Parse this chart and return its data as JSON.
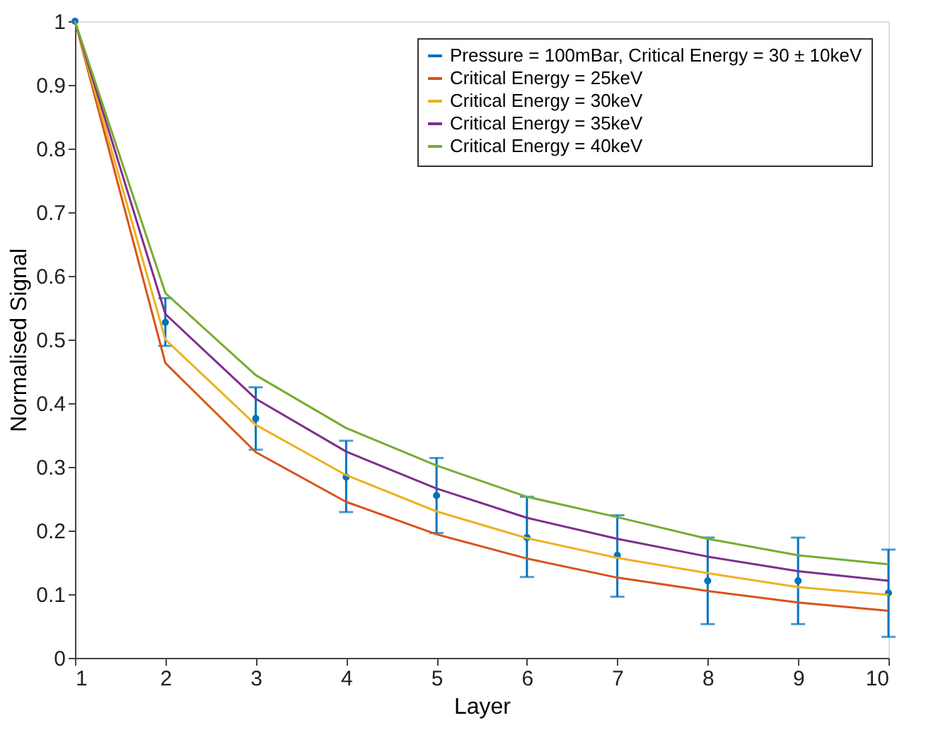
{
  "chart_data": {
    "type": "line",
    "xlabel": "Layer",
    "ylabel": "Normalised Signal",
    "x": [
      1,
      2,
      3,
      4,
      5,
      6,
      7,
      8,
      9,
      10
    ],
    "xlim": [
      1,
      10
    ],
    "xticks": [
      1,
      2,
      3,
      4,
      5,
      6,
      7,
      8,
      9,
      10
    ],
    "ylim": [
      0,
      1
    ],
    "yticks": [
      0,
      0.1,
      0.2,
      0.3,
      0.4,
      0.5,
      0.6,
      0.7,
      0.8,
      0.9,
      1
    ],
    "grid": false,
    "legend": "top right",
    "series": [
      {
        "name": "Pressure = 100mBar, Critical Energy = 30 ± 10keV",
        "type": "scatter",
        "marker": "circle",
        "color": "#0072bd",
        "values": [
          1,
          0.527,
          0.376,
          0.284,
          0.255,
          0.189,
          0.161,
          0.121,
          0.121,
          0.102
        ],
        "errors": [
          null,
          [
            0.49,
            0.565
          ],
          [
            0.327,
            0.425
          ],
          [
            0.229,
            0.341
          ],
          [
            0.196,
            0.314
          ],
          [
            0.127,
            0.253
          ],
          [
            0.096,
            0.224
          ],
          [
            0.053,
            0.189
          ],
          [
            0.053,
            0.189
          ],
          [
            0.033,
            0.17
          ]
        ]
      },
      {
        "name": "Critical Energy = 25keV",
        "color": "#d95319",
        "values": [
          1,
          0.463,
          0.323,
          0.245,
          0.194,
          0.156,
          0.126,
          0.105,
          0.087,
          0.074
        ]
      },
      {
        "name": "Critical Energy = 30keV",
        "color": "#edb120",
        "values": [
          1,
          0.5,
          0.366,
          0.287,
          0.23,
          0.188,
          0.157,
          0.133,
          0.111,
          0.099
        ]
      },
      {
        "name": "Critical Energy = 35keV",
        "color": "#7e2f8e",
        "values": [
          1,
          0.54,
          0.407,
          0.324,
          0.266,
          0.22,
          0.187,
          0.159,
          0.136,
          0.121
        ]
      },
      {
        "name": "Critical Energy = 40keV",
        "color": "#77ac30",
        "values": [
          1,
          0.573,
          0.444,
          0.361,
          0.302,
          0.253,
          0.221,
          0.187,
          0.161,
          0.147
        ]
      }
    ]
  }
}
